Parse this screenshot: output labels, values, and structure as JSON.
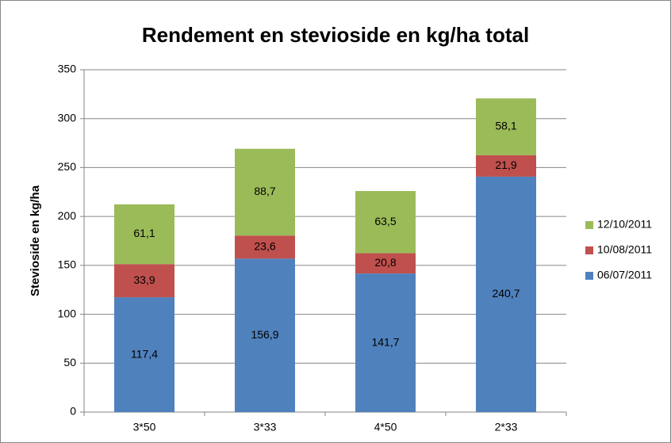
{
  "chart_data": {
    "type": "stacked_bar",
    "title": "Rendement en stevioside en kg/ha total",
    "y_label": "Stevioside en kg/ha",
    "categories": [
      "3*50",
      "3*33",
      "4*50",
      "2*33"
    ],
    "series": [
      {
        "name": "06/07/2011",
        "color": "#4f81bd",
        "values": [
          117.4,
          156.9,
          141.7,
          240.7
        ],
        "value_labels": [
          "117,4",
          "156,9",
          "141,7",
          "240,7"
        ]
      },
      {
        "name": "10/08/2011",
        "color": "#c0504d",
        "values": [
          33.9,
          23.6,
          20.8,
          21.9
        ],
        "value_labels": [
          "33,9",
          "23,6",
          "20,8",
          "21,9"
        ]
      },
      {
        "name": "12/10/2011",
        "color": "#9bbb59",
        "values": [
          61.1,
          88.7,
          63.5,
          58.1
        ],
        "value_labels": [
          "61,1",
          "88,7",
          "63,5",
          "58,1"
        ]
      }
    ],
    "ylim": [
      0,
      350
    ],
    "yticks": [
      0,
      50,
      100,
      150,
      200,
      250,
      300,
      350
    ],
    "grid": true,
    "legend": "right"
  }
}
